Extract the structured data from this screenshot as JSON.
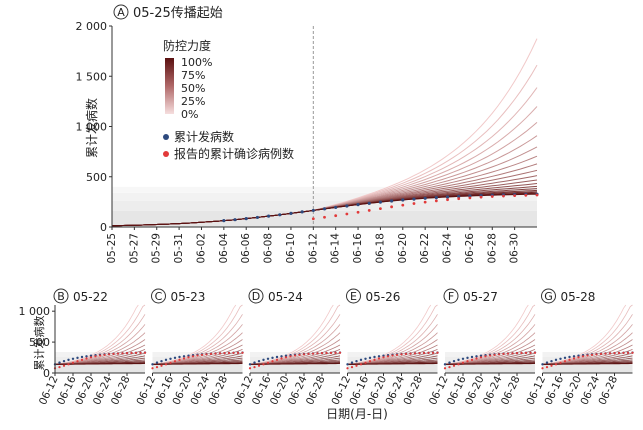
{
  "chart_data": [
    {
      "type": "line",
      "panel_letter": "A",
      "title": "05-25传播起始",
      "ylabel": "累计发病数",
      "yticks": [
        "0",
        "500",
        "1 000",
        "1 500",
        "2 000"
      ],
      "ylim": [
        0,
        2000
      ],
      "x": [
        "05-25",
        "05-27",
        "05-29",
        "05-31",
        "06-02",
        "06-04",
        "06-06",
        "06-08",
        "06-10",
        "06-12",
        "06-14",
        "06-16",
        "06-18",
        "06-20",
        "06-22",
        "06-24",
        "06-26",
        "06-28",
        "06-30"
      ],
      "vline_at": "06-12",
      "legend": {
        "gradient_title": "防控力度",
        "gradient_labels": [
          "100%",
          "75%",
          "50%",
          "25%",
          "0%"
        ],
        "items": [
          {
            "label": "累计发病数",
            "color": "#2e4a7e"
          },
          {
            "label": "报告的累计确诊病例数",
            "color": "#e23a3a"
          }
        ]
      },
      "colors": {
        "low_control": "#f1c9c9",
        "high_control": "#5a1010"
      }
    },
    {
      "type": "line",
      "panel_letter": "B",
      "title": "05-22",
      "x": [
        "06-12",
        "06-16",
        "06-20",
        "06-24",
        "06-28"
      ]
    },
    {
      "type": "line",
      "panel_letter": "C",
      "title": "05-23",
      "x": [
        "06-12",
        "06-16",
        "06-20",
        "06-24",
        "06-28"
      ]
    },
    {
      "type": "line",
      "panel_letter": "D",
      "title": "05-24",
      "x": [
        "06-12",
        "06-16",
        "06-20",
        "06-24",
        "06-28"
      ]
    },
    {
      "type": "line",
      "panel_letter": "E",
      "title": "05-26",
      "x": [
        "06-12",
        "06-16",
        "06-20",
        "06-24",
        "06-28"
      ]
    },
    {
      "type": "line",
      "panel_letter": "F",
      "title": "05-27",
      "x": [
        "06-12",
        "06-16",
        "06-20",
        "06-24",
        "06-28"
      ]
    },
    {
      "type": "line",
      "panel_letter": "G",
      "title": "05-28",
      "x": [
        "06-12",
        "06-16",
        "06-20",
        "06-24",
        "06-28"
      ]
    }
  ],
  "small_panels": {
    "ylabel": "累计发病数",
    "yticks": [
      "0",
      "500",
      "1 000"
    ]
  },
  "xlabel": "日期(月-日)"
}
